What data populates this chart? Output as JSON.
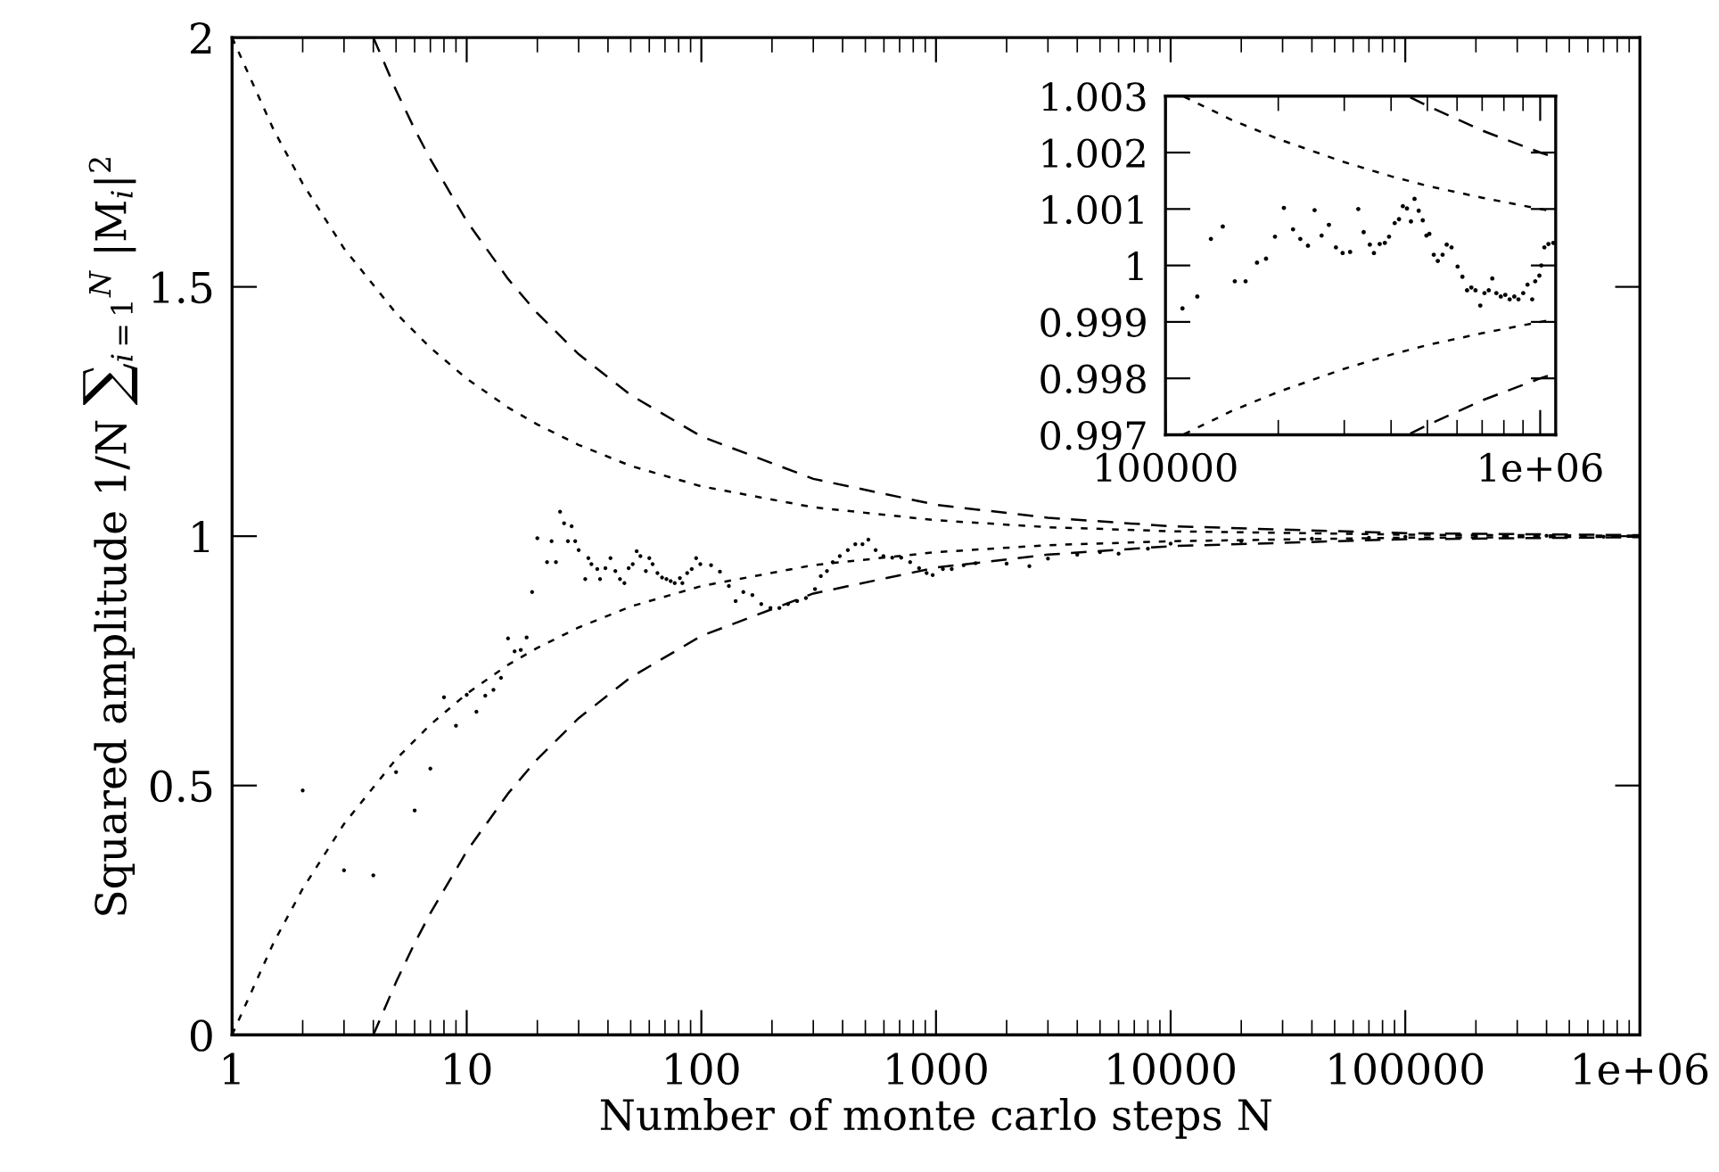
{
  "chart_data": [
    {
      "type": "scatter",
      "xlabel": "Number of monte carlo steps N",
      "ylabel": "Squared amplitude 1/N ∑$_{i=1}$$^{N}$ |M$_{i}$|$^{2}$",
      "log": "x",
      "xlim": [
        1,
        1000000
      ],
      "ylim": [
        0,
        2
      ],
      "xticks": [
        1,
        10,
        100,
        1000,
        10000,
        100000,
        {
          "value": 1000000,
          "label": "1e+06"
        }
      ],
      "yticks": [
        0,
        0.5,
        1,
        1.5,
        2
      ],
      "grid": false,
      "legend": false,
      "series": [
        {
          "color": "#000000",
          "marker": "circle",
          "x": [
            2,
            3,
            4,
            5,
            6,
            7,
            8,
            9,
            10,
            11,
            12,
            13,
            14,
            15,
            16,
            17,
            18,
            19,
            20,
            22,
            23,
            24,
            25,
            26,
            27,
            28,
            29,
            30,
            32,
            33,
            34,
            36,
            37,
            39,
            41,
            43,
            45,
            47,
            49,
            51,
            53,
            55,
            58,
            60,
            62,
            65,
            68,
            71,
            74,
            77,
            81,
            83,
            87,
            91,
            95,
            99,
            110,
            120,
            131,
            140,
            151,
            165,
            180,
            197,
            215,
            234,
            256,
            279,
            305,
            323,
            343,
            363,
            389,
            421,
            453,
            486,
            515,
            553,
            597,
            651,
            711,
            776,
            847,
            912,
            968,
            1070,
            1167,
            1312,
            1475,
            2000,
            2500,
            3000,
            4000,
            5000,
            6000,
            8000,
            10000,
            20000,
            40000,
            70000,
            100000,
            200000,
            400000,
            700000
          ],
          "values": [
            0.49,
            0.33,
            0.32,
            0.527,
            0.45,
            0.534,
            0.677,
            0.62,
            0.682,
            0.648,
            0.68,
            0.692,
            0.716,
            0.795,
            0.769,
            0.772,
            0.797,
            0.888,
            0.996,
            0.948,
            0.99,
            0.948,
            1.049,
            1.026,
            0.99,
            1.02,
            0.99,
            0.972,
            0.914,
            0.956,
            0.944,
            0.934,
            0.914,
            0.936,
            0.956,
            0.93,
            0.914,
            0.906,
            0.936,
            0.944,
            0.97,
            0.96,
            0.93,
            0.956,
            0.944,
            0.926,
            0.917,
            0.914,
            0.91,
            0.906,
            0.916,
            0.906,
            0.926,
            0.934,
            0.956,
            0.944,
            0.942,
            0.929,
            0.9,
            0.87,
            0.888,
            0.882,
            0.864,
            0.856,
            0.856,
            0.864,
            0.87,
            0.876,
            0.894,
            0.92,
            0.93,
            0.948,
            0.96,
            0.972,
            0.984,
            0.984,
            0.993,
            0.972,
            0.96,
            0.957,
            0.957,
            0.948,
            0.936,
            0.926,
            0.922,
            0.934,
            0.934,
            0.942,
            0.946,
            0.945,
            0.94,
            0.955,
            0.963,
            0.968,
            0.965,
            0.975,
            0.985,
            0.99,
            0.995,
            0.997,
            0.999,
            1.0,
            1.001,
            0.999
          ]
        },
        {
          "type": "line",
          "line_style": "dotted",
          "color": "#000000",
          "x": [
            1,
            1.5,
            2,
            3,
            5,
            7,
            10,
            15,
            20,
            30,
            50,
            100,
            300,
            1000,
            3000,
            10000,
            100000,
            1000000
          ],
          "values": [
            2,
            1.816,
            1.707,
            1.577,
            1.447,
            1.378,
            1.316,
            1.258,
            1.224,
            1.183,
            1.141,
            1.1,
            1.058,
            1.032,
            1.018,
            1.01,
            1.003,
            1.001
          ]
        },
        {
          "type": "line",
          "line_style": "dotted",
          "color": "#000000",
          "x": [
            1,
            1.5,
            2,
            3,
            5,
            7,
            10,
            15,
            20,
            30,
            50,
            100,
            300,
            1000,
            3000,
            10000,
            100000,
            1000000
          ],
          "values": [
            0,
            0.184,
            0.293,
            0.423,
            0.553,
            0.622,
            0.684,
            0.742,
            0.776,
            0.817,
            0.859,
            0.9,
            0.942,
            0.968,
            0.982,
            0.99,
            0.997,
            0.999
          ]
        },
        {
          "type": "line",
          "line_style": "dashed",
          "color": "#000000",
          "x": [
            4,
            5,
            6,
            7,
            10,
            15,
            20,
            30,
            50,
            100,
            300,
            1000,
            3000,
            10000,
            100000,
            1000000
          ],
          "values": [
            2,
            1.894,
            1.816,
            1.756,
            1.632,
            1.516,
            1.447,
            1.365,
            1.283,
            1.2,
            1.115,
            1.063,
            1.037,
            1.02,
            1.006,
            1.002
          ]
        },
        {
          "type": "line",
          "line_style": "dashed",
          "color": "#000000",
          "x": [
            4,
            5,
            6,
            7,
            10,
            15,
            20,
            30,
            50,
            100,
            300,
            1000,
            3000,
            10000,
            100000,
            1000000
          ],
          "values": [
            0,
            0.106,
            0.184,
            0.244,
            0.368,
            0.484,
            0.553,
            0.635,
            0.717,
            0.8,
            0.885,
            0.937,
            0.963,
            0.98,
            0.994,
            0.998
          ]
        }
      ]
    },
    {
      "type": "scatter",
      "log": "x",
      "xlim": [
        100000,
        1100000
      ],
      "ylim": [
        0.997,
        1.003
      ],
      "xticks": [
        100000,
        {
          "value": 1000000,
          "label": "1e+06"
        }
      ],
      "yticks": [
        0.997,
        0.998,
        0.999,
        {
          "value": 1,
          "label": "1"
        },
        1.001,
        1.002,
        1.003
      ],
      "grid": false,
      "legend": false,
      "series": [
        {
          "color": "#000000",
          "marker": "circle",
          "x": [
            111000,
            121600,
            132200,
            142200,
            153100,
            163600,
            175500,
            185500,
            196000,
            207000,
            219000,
            229000,
            240000,
            250000,
            261000,
            273000,
            285000,
            297000,
            311000,
            327000,
            338000,
            351000,
            360000,
            373000,
            385000,
            395000,
            409000,
            420000,
            430000,
            441000,
            452000,
            462000,
            474000,
            486000,
            497000,
            506000,
            520000,
            533000,
            549000,
            563000,
            580000,
            602000,
            620000,
            638000,
            655000,
            672000,
            692000,
            710000,
            729000,
            745000,
            764000,
            785000,
            807000,
            829000,
            853000,
            875000,
            901000,
            925000,
            952000,
            970000,
            995000,
            1007000,
            1026000,
            1052000,
            1084000
          ],
          "values": [
            0.99924,
            0.99945,
            1.00047,
            1.00069,
            0.99972,
            0.99972,
            1.00005,
            1.00012,
            1.00051,
            1.00102,
            1.00064,
            1.00047,
            1.00035,
            1.00098,
            1.00053,
            1.00072,
            1.00032,
            1.00022,
            1.00024,
            1.001,
            1.00059,
            1.00037,
            1.00022,
            1.00038,
            1.0004,
            1.00051,
            1.00075,
            1.00082,
            1.00105,
            1.00101,
            1.00078,
            1.00118,
            1.00097,
            1.0008,
            1.00053,
            1.00056,
            1.00019,
            1.00008,
            1.00019,
            1.00037,
            1.00032,
            0.99998,
            0.9998,
            0.99956,
            0.99961,
            0.99956,
            0.99929,
            0.99951,
            0.99956,
            0.99977,
            0.99951,
            0.99945,
            0.99948,
            0.9994,
            0.99945,
            0.9994,
            0.99951,
            0.99966,
            0.9994,
            0.99972,
            0.99982,
            1.0,
            1.00032,
            1.00038,
            1.0004
          ]
        },
        {
          "type": "line",
          "line_style": "dotted",
          "color": "#000000",
          "x": [
            112000,
            150000,
            200000,
            300000,
            400000,
            500000,
            700000,
            1000000,
            1100000
          ],
          "values": [
            1.00299,
            1.00258,
            1.00224,
            1.00183,
            1.00158,
            1.00141,
            1.0012,
            1.001,
            1.00095
          ]
        },
        {
          "type": "line",
          "line_style": "dotted",
          "color": "#000000",
          "x": [
            112000,
            150000,
            200000,
            300000,
            400000,
            500000,
            700000,
            1000000,
            1100000
          ],
          "values": [
            0.99701,
            0.99742,
            0.99776,
            0.99817,
            0.99842,
            0.99859,
            0.9988,
            0.999,
            0.99905
          ]
        },
        {
          "type": "line",
          "line_style": "dashed",
          "color": "#000000",
          "x": [
            450000,
            500000,
            700000,
            1000000,
            1100000
          ],
          "values": [
            1.00298,
            1.00283,
            1.00239,
            1.002,
            1.00191
          ]
        },
        {
          "type": "line",
          "line_style": "dashed",
          "color": "#000000",
          "x": [
            450000,
            500000,
            700000,
            1000000,
            1100000
          ],
          "values": [
            0.99702,
            0.99717,
            0.99761,
            0.998,
            0.99809
          ]
        }
      ]
    }
  ]
}
